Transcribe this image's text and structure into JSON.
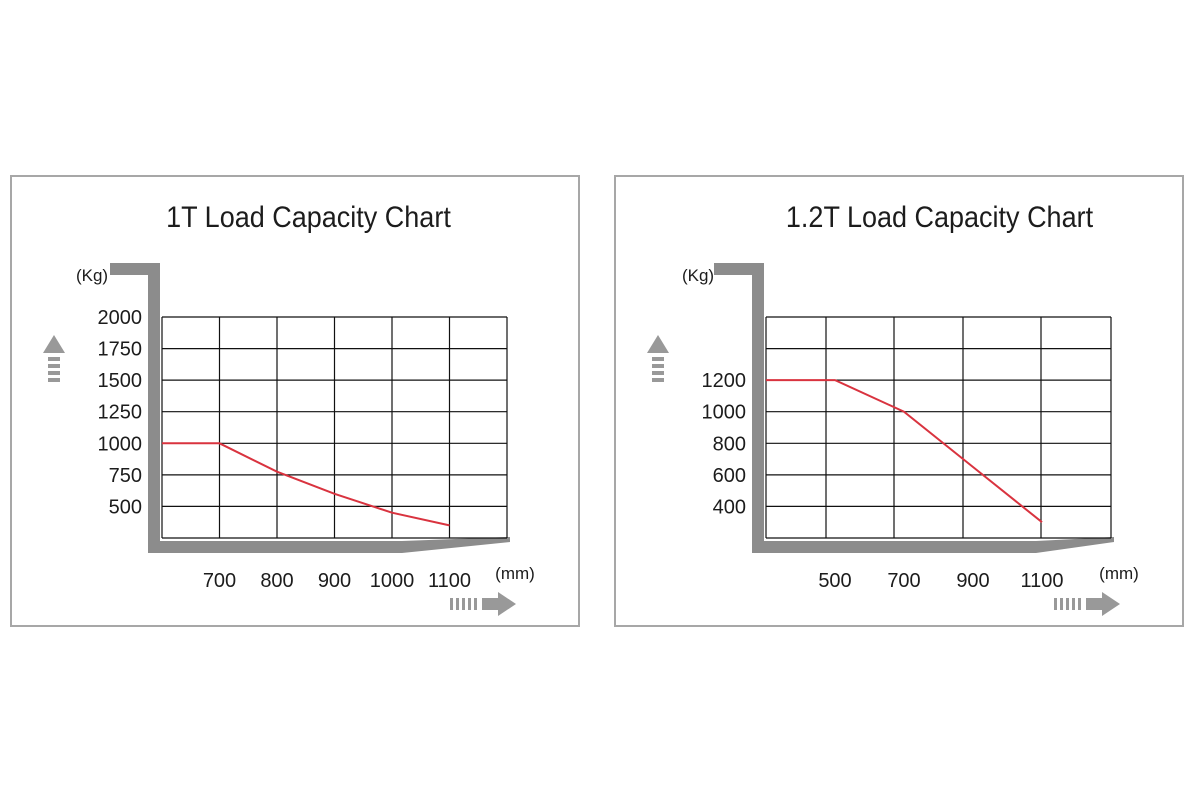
{
  "chart_data": [
    {
      "type": "line",
      "title": "1T Load Capacity Chart",
      "xlabel": "(mm)",
      "ylabel": "(Kg)",
      "x_tick_labels": [
        "700",
        "800",
        "900",
        "1000",
        "1100"
      ],
      "y_tick_labels": [
        "500",
        "750",
        "1000",
        "1250",
        "1500",
        "1750",
        "2000"
      ],
      "xlim": [
        600,
        1200
      ],
      "ylim": [
        250,
        2000
      ],
      "grid": true,
      "series": [
        {
          "color": "#d9333f",
          "x": [
            600,
            700,
            800,
            900,
            1000,
            1100
          ],
          "y": [
            1000,
            1000,
            775,
            600,
            450,
            350
          ]
        }
      ]
    },
    {
      "type": "line",
      "title": "1.2T Load Capacity Chart",
      "xlabel": "(mm)",
      "ylabel": "(Kg)",
      "x_tick_labels": [
        "500",
        "700",
        "900",
        "1100"
      ],
      "y_tick_labels": [
        "400",
        "600",
        "800",
        "1000",
        "1200"
      ],
      "xlim": [
        300,
        1300
      ],
      "ylim": [
        200,
        1600
      ],
      "grid": true,
      "series": [
        {
          "color": "#d9333f",
          "x": [
            300,
            500,
            700,
            900,
            1100
          ],
          "y": [
            1200,
            1200,
            1000,
            650,
            300
          ]
        }
      ]
    }
  ]
}
